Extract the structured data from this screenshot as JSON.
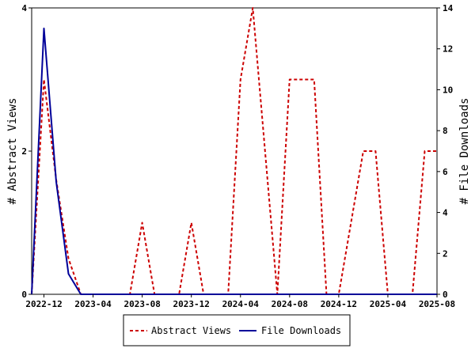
{
  "chart_data": {
    "type": "line",
    "title": "",
    "x_ticks": [
      "2022-12",
      "2023-04",
      "2023-08",
      "2023-12",
      "2024-04",
      "2024-08",
      "2024-12",
      "2025-04",
      "2025-08"
    ],
    "xlim": [
      "2022-11",
      "2025-08"
    ],
    "y_left": {
      "label": "# Abstract Views",
      "lim": [
        0,
        4
      ],
      "ticks": [
        0,
        2,
        4
      ]
    },
    "y_right": {
      "label": "# File Downloads",
      "lim": [
        0,
        14
      ],
      "ticks": [
        0,
        2,
        4,
        6,
        8,
        10,
        12,
        14
      ]
    },
    "grid": false,
    "legend_position": "bottom-center",
    "series": [
      {
        "name": "Abstract Views",
        "axis": "left",
        "color": "#cc0000",
        "style": "dashed",
        "points": [
          [
            "2022-11",
            0
          ],
          [
            "2022-12",
            3
          ],
          [
            "2023-01",
            1.6
          ],
          [
            "2023-02",
            0.5
          ],
          [
            "2023-03",
            0
          ],
          [
            "2023-04",
            0
          ],
          [
            "2023-05",
            0
          ],
          [
            "2023-06",
            0
          ],
          [
            "2023-07",
            0
          ],
          [
            "2023-08",
            1
          ],
          [
            "2023-09",
            0
          ],
          [
            "2023-10",
            0
          ],
          [
            "2023-11",
            0
          ],
          [
            "2023-12",
            1
          ],
          [
            "2024-01",
            0
          ],
          [
            "2024-02",
            0
          ],
          [
            "2024-03",
            0
          ],
          [
            "2024-04",
            3
          ],
          [
            "2024-05",
            4
          ],
          [
            "2024-06",
            2
          ],
          [
            "2024-07",
            0
          ],
          [
            "2024-08",
            3
          ],
          [
            "2024-09",
            3
          ],
          [
            "2024-10",
            3
          ],
          [
            "2024-11",
            0
          ],
          [
            "2024-12",
            0
          ],
          [
            "2025-01",
            1
          ],
          [
            "2025-02",
            2
          ],
          [
            "2025-03",
            2
          ],
          [
            "2025-04",
            0
          ],
          [
            "2025-05",
            0
          ],
          [
            "2025-06",
            0
          ],
          [
            "2025-07",
            2
          ],
          [
            "2025-08",
            2
          ]
        ]
      },
      {
        "name": "File Downloads",
        "axis": "right",
        "color": "#000099",
        "style": "solid",
        "points": [
          [
            "2022-11",
            0
          ],
          [
            "2022-12",
            13
          ],
          [
            "2023-01",
            5.5
          ],
          [
            "2023-02",
            1
          ],
          [
            "2023-03",
            0
          ],
          [
            "2023-04",
            0
          ],
          [
            "2023-05",
            0
          ],
          [
            "2023-06",
            0
          ],
          [
            "2023-07",
            0
          ],
          [
            "2023-08",
            0
          ],
          [
            "2023-09",
            0
          ],
          [
            "2023-10",
            0
          ],
          [
            "2023-11",
            0
          ],
          [
            "2023-12",
            0
          ],
          [
            "2024-01",
            0
          ],
          [
            "2024-02",
            0
          ],
          [
            "2024-03",
            0
          ],
          [
            "2024-04",
            0
          ],
          [
            "2024-05",
            0
          ],
          [
            "2024-06",
            0
          ],
          [
            "2024-07",
            0
          ],
          [
            "2024-08",
            0
          ],
          [
            "2024-09",
            0
          ],
          [
            "2024-10",
            0
          ],
          [
            "2024-11",
            0
          ],
          [
            "2024-12",
            0
          ],
          [
            "2025-01",
            0
          ],
          [
            "2025-02",
            0
          ],
          [
            "2025-03",
            0
          ],
          [
            "2025-04",
            0
          ],
          [
            "2025-05",
            0
          ],
          [
            "2025-06",
            0
          ],
          [
            "2025-07",
            0
          ],
          [
            "2025-08",
            0
          ]
        ]
      }
    ]
  }
}
